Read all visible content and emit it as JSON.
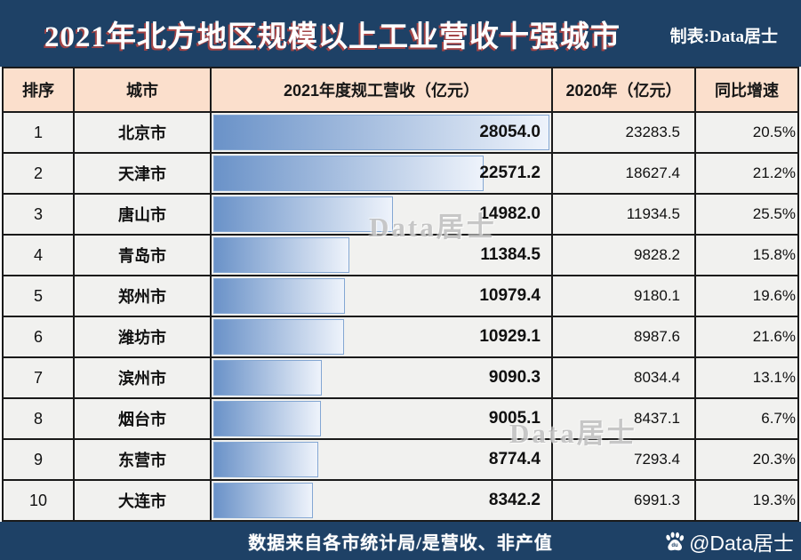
{
  "title": {
    "main": "2021年北方地区规模以上工业营收十强城市",
    "credit": "制表:Data居士"
  },
  "columns": [
    "排序",
    "城市",
    "2021年度规工营收（亿元）",
    "2020年（亿元）",
    "同比增速"
  ],
  "rows": [
    {
      "rank": "1",
      "city": "北京市",
      "revenue_2021": "28054.0",
      "revenue_2020": "23283.5",
      "growth": "20.5%"
    },
    {
      "rank": "2",
      "city": "天津市",
      "revenue_2021": "22571.2",
      "revenue_2020": "18627.4",
      "growth": "21.2%"
    },
    {
      "rank": "3",
      "city": "唐山市",
      "revenue_2021": "14982.0",
      "revenue_2020": "11934.5",
      "growth": "25.5%"
    },
    {
      "rank": "4",
      "city": "青岛市",
      "revenue_2021": "11384.5",
      "revenue_2020": "9828.2",
      "growth": "15.8%"
    },
    {
      "rank": "5",
      "city": "郑州市",
      "revenue_2021": "10979.4",
      "revenue_2020": "9180.1",
      "growth": "19.6%"
    },
    {
      "rank": "6",
      "city": "潍坊市",
      "revenue_2021": "10929.1",
      "revenue_2020": "8987.6",
      "growth": "21.6%"
    },
    {
      "rank": "7",
      "city": "滨州市",
      "revenue_2021": "9090.3",
      "revenue_2020": "8034.4",
      "growth": "13.1%"
    },
    {
      "rank": "8",
      "city": "烟台市",
      "revenue_2021": "9005.1",
      "revenue_2020": "8437.1",
      "growth": "6.7%"
    },
    {
      "rank": "9",
      "city": "东营市",
      "revenue_2021": "8774.4",
      "revenue_2020": "7293.4",
      "growth": "20.3%"
    },
    {
      "rank": "10",
      "city": "大连市",
      "revenue_2021": "8342.2",
      "revenue_2020": "6991.3",
      "growth": "19.3%"
    }
  ],
  "footer": {
    "note": "数据来自各市统计局/是营收、非产值",
    "brand": "@Data居士",
    "brand_icon": "baidu-paw-icon"
  },
  "watermark": {
    "text": "Data居士"
  },
  "colors": {
    "navy": "#1e4166",
    "header_bg": "#fbdfcc",
    "row_bg": "#f1f1ef",
    "bar_gradient_start": "#6a92c8",
    "bar_gradient_end": "#eef3fb",
    "bar_border": "#84a7d3",
    "title_shadow_red": "#ba4440"
  },
  "chart_data": {
    "type": "bar",
    "orientation": "horizontal",
    "title": "2021年北方地区规模以上工业营收十强城市",
    "categories": [
      "北京市",
      "天津市",
      "唐山市",
      "青岛市",
      "郑州市",
      "潍坊市",
      "滨州市",
      "烟台市",
      "东营市",
      "大连市"
    ],
    "series": [
      {
        "name": "2021年度规工营收（亿元）",
        "values": [
          28054.0,
          22571.2,
          14982.0,
          11384.5,
          10979.4,
          10929.1,
          9090.3,
          9005.1,
          8774.4,
          8342.2
        ]
      },
      {
        "name": "2020年（亿元）",
        "values": [
          23283.5,
          18627.4,
          11934.5,
          9828.2,
          9180.1,
          8987.6,
          8034.4,
          8437.1,
          7293.4,
          6991.3
        ]
      },
      {
        "name": "同比增速",
        "values": [
          "20.5%",
          "21.2%",
          "25.5%",
          "15.8%",
          "19.6%",
          "21.6%",
          "13.1%",
          "6.7%",
          "20.3%",
          "19.3%"
        ]
      }
    ],
    "bar_axis_max": 28054.0,
    "grid": false,
    "legend": false,
    "value_labels": "shown at right edge of bar column"
  }
}
